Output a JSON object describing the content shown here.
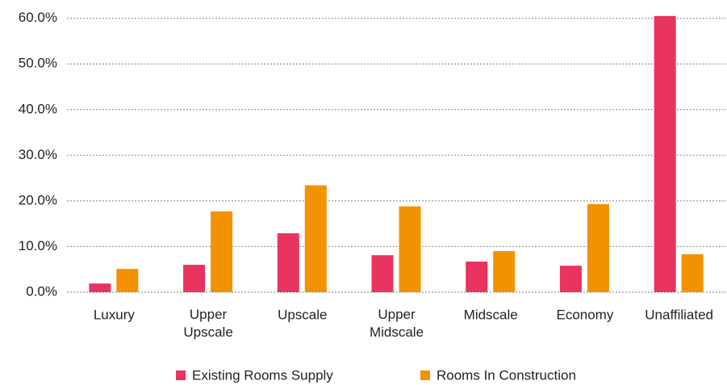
{
  "chart_data": {
    "type": "bar",
    "categories": [
      "Luxury",
      "Upper Upscale",
      "Upscale",
      "Upper Midscale",
      "Midscale",
      "Economy",
      "Unaffiliated"
    ],
    "series": [
      {
        "name": "Existing Rooms Supply",
        "color": "#e8345f",
        "values": [
          1.9,
          6.0,
          12.9,
          8.1,
          6.7,
          5.8,
          60.5
        ]
      },
      {
        "name": "Rooms In Construction",
        "color": "#f39200",
        "values": [
          5.1,
          17.7,
          23.4,
          18.8,
          9.0,
          19.3,
          8.3
        ]
      }
    ],
    "ylim": [
      0,
      61
    ],
    "yticks": [
      {
        "value": 0,
        "label": "0.0%"
      },
      {
        "value": 10,
        "label": "10.0%"
      },
      {
        "value": 20,
        "label": "20.0%"
      },
      {
        "value": 30,
        "label": "30.0%"
      },
      {
        "value": 40,
        "label": "40.0%"
      },
      {
        "value": 50,
        "label": "50.0%"
      },
      {
        "value": 60,
        "label": "60.0%"
      }
    ],
    "grid": true,
    "legend": "bottom"
  }
}
